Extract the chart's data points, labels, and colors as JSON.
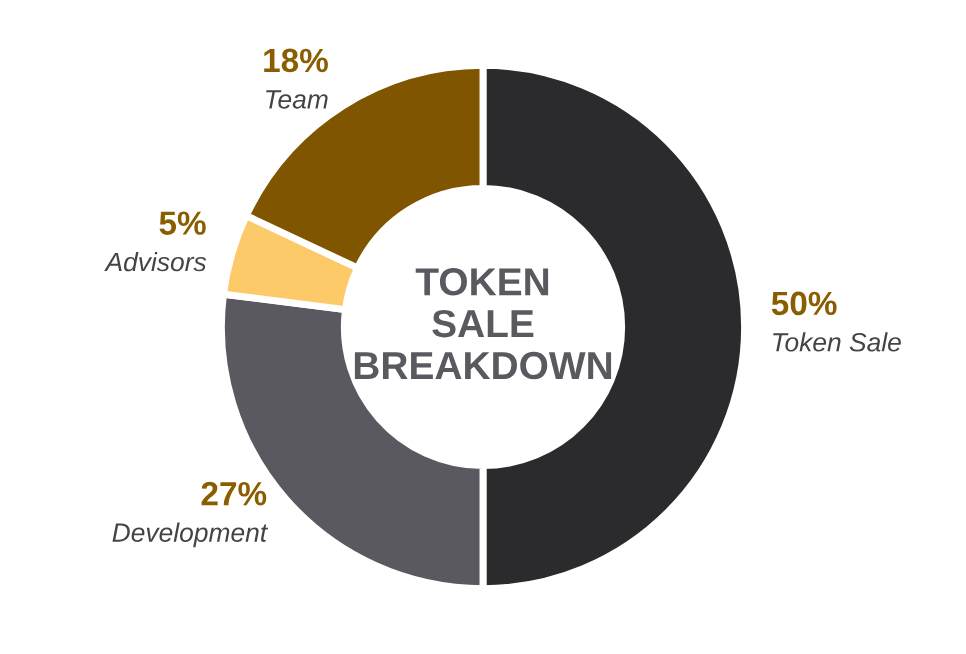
{
  "chart_data": {
    "type": "donut",
    "title": "TOKEN\nSALE\nBREAKDOWN",
    "categories": [
      "Token Sale",
      "Development",
      "Advisors",
      "Team"
    ],
    "values": [
      50,
      27,
      5,
      18
    ],
    "colors": [
      "#2b2a2d",
      "#5a5960",
      "#fdca6a",
      "#7f5500"
    ],
    "value_labels": [
      "50%",
      "27%",
      "5%",
      "18%"
    ],
    "legend": false
  }
}
